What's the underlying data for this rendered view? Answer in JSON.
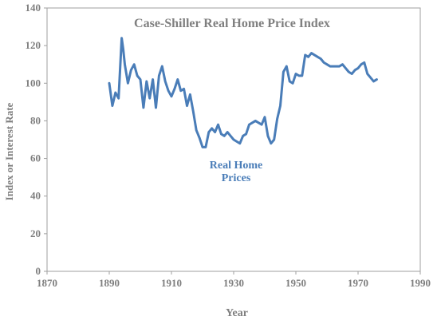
{
  "chart_data": {
    "type": "line",
    "title": "Case-Shiller Real Home Price Index",
    "xlabel": "Year",
    "ylabel": "Index or Interest Rate",
    "xlim": [
      1870,
      1990
    ],
    "ylim": [
      0,
      140
    ],
    "x_ticks": [
      "1870",
      "1890",
      "1910",
      "1930",
      "1950",
      "1970",
      "1990"
    ],
    "y_ticks": [
      "0",
      "20",
      "40",
      "60",
      "80",
      "100",
      "120",
      "140"
    ],
    "grid": false,
    "line_color": "#4a7db8",
    "annotation": {
      "line1": "Real Home",
      "line2": "Prices"
    },
    "series": [
      {
        "x": [
          1890,
          1891,
          1892,
          1893,
          1894,
          1894.5,
          1895,
          1896,
          1897,
          1898,
          1899,
          1900,
          1901,
          1902,
          1903,
          1904,
          1905,
          1906,
          1907,
          1908,
          1909,
          1910,
          1911,
          1912,
          1913,
          1914,
          1915,
          1916,
          1917,
          1918,
          1919,
          1920,
          1921,
          1922,
          1923,
          1924,
          1925,
          1926,
          1927,
          1928,
          1929,
          1930,
          1931,
          1932,
          1933,
          1934,
          1935,
          1936,
          1937,
          1938,
          1939,
          1940,
          1941,
          1942,
          1943,
          1944,
          1945,
          1946,
          1947,
          1948,
          1949,
          1950,
          1951,
          1952,
          1953,
          1954,
          1955,
          1956,
          1957,
          1958,
          1959,
          1960,
          1961,
          1962,
          1963,
          1964,
          1965,
          1966,
          1967,
          1968,
          1969,
          1970,
          1971,
          1972,
          1973,
          1974,
          1975,
          1976
        ],
        "values": [
          100,
          88,
          95,
          92,
          124,
          118,
          110,
          100,
          107,
          110,
          104,
          102,
          87,
          101,
          92,
          102,
          87,
          104,
          109,
          101,
          96,
          93,
          97,
          102,
          96,
          97,
          88,
          94,
          85,
          75,
          71,
          66,
          66,
          74,
          76,
          74,
          78,
          73,
          72,
          74,
          72,
          70,
          69,
          68,
          72,
          73,
          78,
          79,
          80,
          79,
          78,
          82,
          72,
          68,
          70,
          81,
          88,
          106,
          109,
          101,
          100,
          105,
          104,
          104,
          115,
          114,
          116,
          115,
          114,
          113,
          111,
          110,
          109,
          109,
          109,
          109,
          110,
          108,
          106,
          105,
          107,
          108,
          110,
          111,
          105,
          103,
          101,
          102
        ]
      }
    ]
  }
}
